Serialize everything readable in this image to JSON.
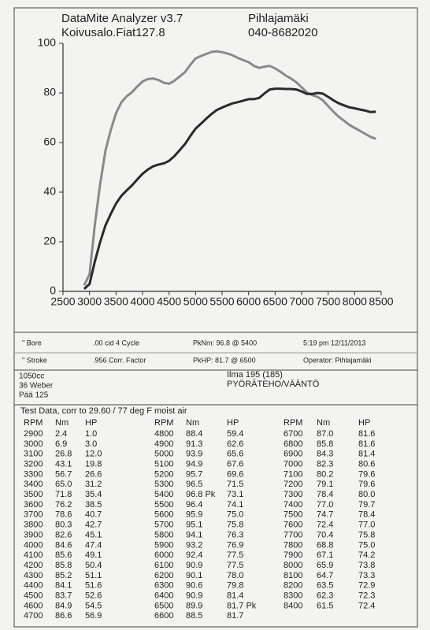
{
  "header": {
    "title": "DataMite Analyzer v3.7",
    "vehicle": "Koivusalo.Fiat127.8",
    "owner": "Pihlajamäki",
    "phone": "040-8682020"
  },
  "chart_data": {
    "type": "line",
    "x": [
      2900,
      3000,
      3100,
      3200,
      3300,
      3400,
      3500,
      3600,
      3700,
      3800,
      3900,
      4000,
      4100,
      4200,
      4300,
      4400,
      4500,
      4600,
      4700,
      4800,
      4900,
      5000,
      5100,
      5200,
      5300,
      5400,
      5500,
      5600,
      5700,
      5800,
      5900,
      6000,
      6100,
      6200,
      6300,
      6400,
      6500,
      6600,
      6700,
      6800,
      6900,
      7000,
      7100,
      7200,
      7300,
      7400,
      7500,
      7600,
      7700,
      7800,
      7900,
      8000,
      8100,
      8200,
      8300,
      8400
    ],
    "series": [
      {
        "color": "#8a8a8a",
        "values": [
          2.4,
          6.9,
          26.8,
          43.1,
          56.7,
          65.0,
          71.8,
          76.2,
          78.6,
          80.3,
          82.6,
          84.6,
          85.6,
          85.8,
          85.2,
          84.1,
          83.7,
          84.9,
          86.6,
          88.4,
          91.3,
          93.9,
          94.9,
          95.7,
          96.5,
          96.8,
          96.4,
          95.9,
          95.1,
          94.1,
          93.2,
          92.4,
          90.9,
          90.1,
          90.6,
          90.9,
          89.9,
          88.5,
          87.0,
          85.8,
          84.3,
          82.3,
          80.2,
          79.1,
          78.4,
          77.0,
          74.7,
          72.4,
          70.4,
          68.8,
          67.1,
          65.9,
          64.7,
          63.5,
          62.3,
          61.5
        ]
      },
      {
        "color": "#2a2a2a",
        "values": [
          1.0,
          3.0,
          12.0,
          19.8,
          26.6,
          31.2,
          35.4,
          38.5,
          40.7,
          42.7,
          45.1,
          47.4,
          49.1,
          50.4,
          51.1,
          51.6,
          52.6,
          54.5,
          56.9,
          59.4,
          62.6,
          65.6,
          67.6,
          69.6,
          71.5,
          73.1,
          74.1,
          75.0,
          75.8,
          76.3,
          76.9,
          77.5,
          77.5,
          78.0,
          79.8,
          81.4,
          81.7,
          81.7,
          81.6,
          81.6,
          81.4,
          80.6,
          79.6,
          79.6,
          80.0,
          79.7,
          78.4,
          77.0,
          75.8,
          75.0,
          74.2,
          73.8,
          73.3,
          72.9,
          72.3,
          72.4
        ]
      }
    ],
    "xlim": [
      2500,
      8500
    ],
    "xticks": [
      2500,
      3000,
      3500,
      4000,
      4500,
      5000,
      5500,
      6000,
      6500,
      7000,
      7500,
      8000,
      8500
    ],
    "ylim": [
      0,
      100
    ],
    "yticks": [
      0,
      20,
      40,
      60,
      80,
      100
    ]
  },
  "info": {
    "rows": [
      [
        "\" Bore",
        ".00 cid  4 Cycle",
        "PkNm: 96.8 @  5400",
        "5:19 pm  12/11/2013"
      ],
      [
        "\" Stroke",
        ".956 Corr. Factor",
        "PkHP: 81.7 @  6500",
        "Operator: Pihlajamäki"
      ]
    ],
    "notes_left": [
      "1050cc",
      "36 Weber",
      "Pää 125"
    ],
    "notes_right": [
      "Ilma 195 (185)",
      "PYÖRÄTEHO/VÄÄNTÖ"
    ]
  },
  "table": {
    "caption": "Test Data, corr to 29.60 / 77 deg F moist air",
    "columns": [
      "RPM",
      "Nm",
      "HP"
    ],
    "rows": [
      [
        "2900",
        "2.4",
        "1.0"
      ],
      [
        "3000",
        "6.9",
        "3.0"
      ],
      [
        "3100",
        "26.8",
        "12.0"
      ],
      [
        "3200",
        "43.1",
        "19.8"
      ],
      [
        "3300",
        "56.7",
        "26.6"
      ],
      [
        "3400",
        "65.0",
        "31.2"
      ],
      [
        "3500",
        "71.8",
        "35.4"
      ],
      [
        "3600",
        "76.2",
        "38.5"
      ],
      [
        "3700",
        "78.6",
        "40.7"
      ],
      [
        "3800",
        "80.3",
        "42.7"
      ],
      [
        "3900",
        "82.6",
        "45.1"
      ],
      [
        "4000",
        "84.6",
        "47.4"
      ],
      [
        "4100",
        "85.6",
        "49.1"
      ],
      [
        "4200",
        "85.8",
        "50.4"
      ],
      [
        "4300",
        "85.2",
        "51.1"
      ],
      [
        "4400",
        "84.1",
        "51.6"
      ],
      [
        "4500",
        "83.7",
        "52.6"
      ],
      [
        "4600",
        "84.9",
        "54.5"
      ],
      [
        "4700",
        "86.6",
        "56.9"
      ],
      [
        "4800",
        "88.4",
        "59.4"
      ],
      [
        "4900",
        "91.3",
        "62.6"
      ],
      [
        "5000",
        "93.9",
        "65.6"
      ],
      [
        "5100",
        "94.9",
        "67.6"
      ],
      [
        "5200",
        "95.7",
        "69.6"
      ],
      [
        "5300",
        "96.5",
        "71.5"
      ],
      [
        "5400",
        "96.8 Pk",
        "73.1"
      ],
      [
        "5500",
        "96.4",
        "74.1"
      ],
      [
        "5600",
        "95.9",
        "75.0"
      ],
      [
        "5700",
        "95.1",
        "75.8"
      ],
      [
        "5800",
        "94.1",
        "76.3"
      ],
      [
        "5900",
        "93.2",
        "76.9"
      ],
      [
        "6000",
        "92.4",
        "77.5"
      ],
      [
        "6100",
        "90.9",
        "77.5"
      ],
      [
        "6200",
        "90.1",
        "78.0"
      ],
      [
        "6300",
        "90.6",
        "79.8"
      ],
      [
        "6400",
        "90.9",
        "81.4"
      ],
      [
        "6500",
        "89.9",
        "81.7 Pk"
      ],
      [
        "6600",
        "88.5",
        "81.7"
      ],
      [
        "6700",
        "87.0",
        "81.6"
      ],
      [
        "6800",
        "85.8",
        "81.6"
      ],
      [
        "6900",
        "84.3",
        "81.4"
      ],
      [
        "7000",
        "82.3",
        "80.6"
      ],
      [
        "7100",
        "80.2",
        "79.6"
      ],
      [
        "7200",
        "79.1",
        "79.6"
      ],
      [
        "7300",
        "78.4",
        "80.0"
      ],
      [
        "7400",
        "77.0",
        "79.7"
      ],
      [
        "7500",
        "74.7",
        "78.4"
      ],
      [
        "7600",
        "72.4",
        "77.0"
      ],
      [
        "7700",
        "70.4",
        "75.8"
      ],
      [
        "7800",
        "68.8",
        "75.0"
      ],
      [
        "7900",
        "67.1",
        "74.2"
      ],
      [
        "8000",
        "65.9",
        "73.8"
      ],
      [
        "8100",
        "64.7",
        "73.3"
      ],
      [
        "8200",
        "63.5",
        "72.9"
      ],
      [
        "8300",
        "62.3",
        "72.3"
      ],
      [
        "8400",
        "61.5",
        "72.4"
      ]
    ]
  }
}
